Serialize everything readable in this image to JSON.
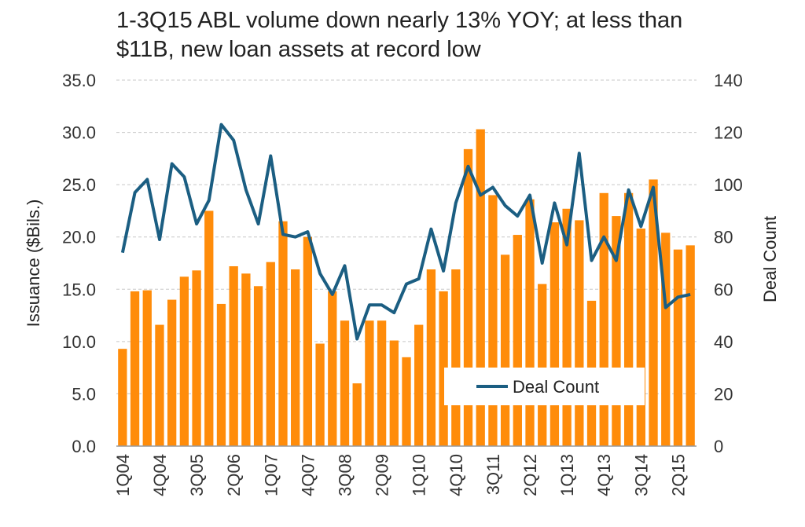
{
  "chart_data": {
    "type": "bar",
    "title": "1-3Q15 ABL volume down nearly 13% YOY; at less than $11B, new loan assets at record low",
    "ylabel": "Issuance ($Bils.)",
    "y2label": "Deal Count",
    "ylim": [
      0,
      35
    ],
    "y2lim": [
      0,
      140
    ],
    "yticks": [
      "0.0",
      "5.0",
      "10.0",
      "15.0",
      "20.0",
      "25.0",
      "30.0",
      "35.0"
    ],
    "y2ticks": [
      "0",
      "20",
      "40",
      "60",
      "80",
      "100",
      "120",
      "140"
    ],
    "grid": true,
    "legend_position": "bottom-right",
    "xtick_labels": [
      "1Q04",
      "4Q04",
      "3Q05",
      "2Q06",
      "1Q07",
      "4Q07",
      "3Q08",
      "2Q09",
      "1Q10",
      "4Q10",
      "3Q11",
      "2Q12",
      "1Q13",
      "4Q13",
      "3Q14",
      "2Q15"
    ],
    "categories": [
      "1Q04",
      "2Q04",
      "3Q04",
      "4Q04",
      "1Q05",
      "2Q05",
      "3Q05",
      "4Q05",
      "1Q06",
      "2Q06",
      "3Q06",
      "4Q06",
      "1Q07",
      "2Q07",
      "3Q07",
      "4Q07",
      "1Q08",
      "2Q08",
      "3Q08",
      "4Q08",
      "1Q09",
      "2Q09",
      "3Q09",
      "4Q09",
      "1Q10",
      "2Q10",
      "3Q10",
      "4Q10",
      "1Q11",
      "2Q11",
      "3Q11",
      "4Q11",
      "1Q12",
      "2Q12",
      "3Q12",
      "4Q12",
      "1Q13",
      "2Q13",
      "3Q13",
      "4Q13",
      "1Q14",
      "2Q14",
      "3Q14",
      "4Q14",
      "1Q15",
      "2Q15",
      "3Q15"
    ],
    "series": [
      {
        "type": "bar",
        "axis": "left",
        "color": "#FF8C0A",
        "values": [
          9.3,
          14.8,
          14.9,
          11.6,
          14.0,
          16.2,
          16.8,
          22.5,
          13.6,
          17.2,
          16.5,
          15.3,
          17.6,
          21.5,
          16.9,
          20.0,
          9.8,
          14.8,
          12.0,
          6.0,
          12.0,
          12.0,
          10.1,
          8.5,
          11.6,
          16.9,
          14.8,
          16.9,
          28.4,
          30.3,
          24.0,
          18.3,
          20.2,
          23.6,
          15.5,
          21.4,
          22.7,
          21.6,
          13.9,
          24.2,
          22.0,
          24.2,
          20.8,
          25.5,
          20.4,
          18.8,
          19.2
        ]
      },
      {
        "type": "line",
        "axis": "right",
        "name": "Deal Count",
        "color": "#1B5E82",
        "values": [
          74,
          97,
          102,
          79,
          108,
          103,
          85,
          94,
          123,
          117,
          98,
          85,
          111,
          81,
          80,
          82,
          66,
          58,
          69,
          41,
          54,
          54,
          51,
          62,
          64,
          83,
          67,
          93,
          107,
          96,
          99,
          92,
          88,
          96,
          70,
          93,
          77,
          112,
          71,
          80,
          71,
          98,
          84,
          99,
          53,
          57,
          58
        ]
      }
    ]
  }
}
